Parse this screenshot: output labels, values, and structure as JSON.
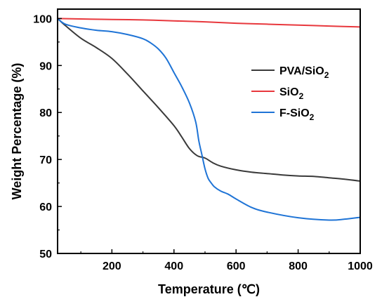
{
  "chart_data": {
    "type": "line",
    "title": "",
    "xlabel": "Temperature (℃)",
    "ylabel": "Weight Percentage (%)",
    "xlim": [
      25,
      1000
    ],
    "ylim": [
      50,
      102
    ],
    "xticks": [
      200,
      400,
      600,
      800,
      1000
    ],
    "yticks": [
      50,
      60,
      70,
      80,
      90,
      100
    ],
    "grid": false,
    "legend_position": "right",
    "series": [
      {
        "name": "PVA/SiO2",
        "name_base": "PVA/SiO",
        "name_sub": "2",
        "color": "#3a3a3a",
        "x": [
          25,
          50,
          100,
          150,
          200,
          250,
          300,
          350,
          400,
          425,
          450,
          475,
          500,
          525,
          550,
          600,
          650,
          700,
          750,
          800,
          850,
          900,
          950,
          1000
        ],
        "y": [
          100,
          98.5,
          95.8,
          93.8,
          91.5,
          88.2,
          84.6,
          81.0,
          77.2,
          74.8,
          72.3,
          70.8,
          70.3,
          69.3,
          68.6,
          67.8,
          67.3,
          67.0,
          66.7,
          66.5,
          66.4,
          66.1,
          65.8,
          65.4
        ]
      },
      {
        "name": "SiO2",
        "name_base": "SiO",
        "name_sub": "2",
        "color": "#e8383d",
        "x": [
          25,
          100,
          200,
          300,
          400,
          500,
          600,
          700,
          800,
          900,
          1000
        ],
        "y": [
          100,
          99.9,
          99.8,
          99.7,
          99.5,
          99.3,
          99.0,
          98.8,
          98.6,
          98.4,
          98.2
        ]
      },
      {
        "name": "F-SiO2",
        "name_base": "F-SiO",
        "name_sub": "2",
        "color": "#1f74d6",
        "x": [
          25,
          50,
          100,
          150,
          200,
          250,
          300,
          325,
          350,
          375,
          400,
          425,
          450,
          470,
          480,
          490,
          500,
          510,
          520,
          530,
          550,
          575,
          600,
          650,
          700,
          800,
          900,
          950,
          1000
        ],
        "y": [
          100,
          98.8,
          98.0,
          97.5,
          97.2,
          96.6,
          95.7,
          94.8,
          93.5,
          91.5,
          88.5,
          85.5,
          82.0,
          78.0,
          74.0,
          71.0,
          68.0,
          66.0,
          65.0,
          64.2,
          63.3,
          62.6,
          61.6,
          59.8,
          58.8,
          57.6,
          57.1,
          57.3,
          57.7
        ]
      }
    ]
  }
}
